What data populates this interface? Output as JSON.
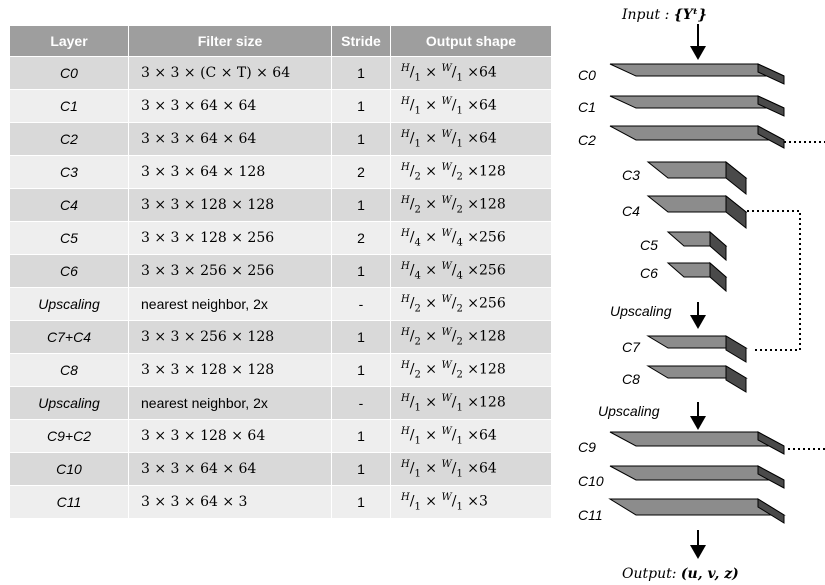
{
  "table": {
    "headers": [
      "Layer",
      "Filter size",
      "Stride",
      "Output shape"
    ],
    "rows": [
      {
        "layer": "C0",
        "filter": "3 × 3 × (C × T) × 64",
        "stride": "1",
        "h": "1",
        "w": "1",
        "ch": "×64"
      },
      {
        "layer": "C1",
        "filter": "3 × 3 × 64 × 64",
        "stride": "1",
        "h": "1",
        "w": "1",
        "ch": "×64"
      },
      {
        "layer": "C2",
        "filter": "3 × 3 × 64 × 64",
        "stride": "1",
        "h": "1",
        "w": "1",
        "ch": "×64"
      },
      {
        "layer": "C3",
        "filter": "3 × 3 × 64 × 128",
        "stride": "2",
        "h": "2",
        "w": "2",
        "ch": "×128"
      },
      {
        "layer": "C4",
        "filter": "3 × 3 × 128 × 128",
        "stride": "1",
        "h": "2",
        "w": "2",
        "ch": "×128"
      },
      {
        "layer": "C5",
        "filter": "3 × 3 × 128 × 256",
        "stride": "2",
        "h": "4",
        "w": "4",
        "ch": "×256"
      },
      {
        "layer": "C6",
        "filter": "3 × 3 × 256 × 256",
        "stride": "1",
        "h": "4",
        "w": "4",
        "ch": "×256"
      },
      {
        "layer": "Upscaling",
        "filter": "nearest neighbor, 2x",
        "stride": "-",
        "h": "2",
        "w": "2",
        "ch": "×256"
      },
      {
        "layer": "C7+C4",
        "filter": "3 × 3 × 256 × 128",
        "stride": "1",
        "h": "2",
        "w": "2",
        "ch": "×128"
      },
      {
        "layer": "C8",
        "filter": "3 × 3 × 128 × 128",
        "stride": "1",
        "h": "2",
        "w": "2",
        "ch": "×128"
      },
      {
        "layer": "Upscaling",
        "filter": "nearest neighbor, 2x",
        "stride": "-",
        "h": "1",
        "w": "1",
        "ch": "×128"
      },
      {
        "layer": "C9+C2",
        "filter": "3 × 3 × 128 × 64",
        "stride": "1",
        "h": "1",
        "w": "1",
        "ch": "×64"
      },
      {
        "layer": "C10",
        "filter": "3 × 3 × 64 × 64",
        "stride": "1",
        "h": "1",
        "w": "1",
        "ch": "×64"
      },
      {
        "layer": "C11",
        "filter": "3 × 3 × 64 × 3",
        "stride": "1",
        "h": "1",
        "w": "1",
        "ch": "×3"
      }
    ]
  },
  "output_shape": {
    "H": "H",
    "W": "W"
  },
  "diagram": {
    "input_label": "Input",
    "input_value": "{Yᵗ}",
    "output_label": "Output",
    "output_value": "(u, v, z)",
    "upscaling_label": "Upscaling",
    "layers": [
      "C0",
      "C1",
      "C2",
      "C3",
      "C4",
      "C5",
      "C6",
      "C7",
      "C8",
      "C9",
      "C10",
      "C11"
    ]
  },
  "colors": {
    "header_bg": "#9e9e9e",
    "row_dark": "#d9d9d9",
    "row_light": "#eeeeee",
    "slab_top": "#8c8c8c",
    "slab_side": "#5e5e5e"
  }
}
